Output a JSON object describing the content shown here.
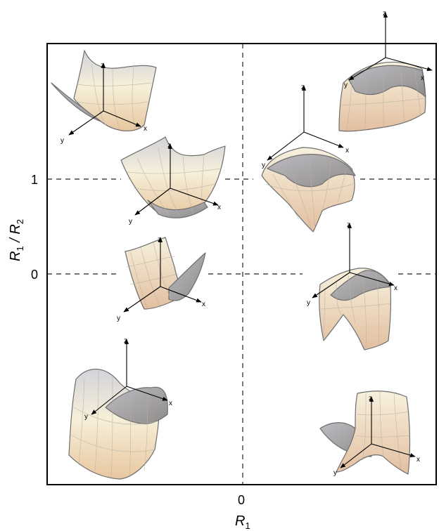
{
  "axes": {
    "x_title_base": "R",
    "x_title_sub": "1",
    "y_title_num_base": "R",
    "y_title_num_sub": "1",
    "y_title_sep": " / ",
    "y_title_den_base": "R",
    "y_title_den_sub": "2",
    "x_ticks": [
      "0"
    ],
    "y_ticks": [
      "1",
      "0"
    ]
  },
  "axis3d_labels": {
    "x": "x",
    "y": "y",
    "z": "z"
  },
  "surfaces": [
    {
      "id": "bowl-top-left",
      "shape": "trough"
    },
    {
      "id": "bowl-upper-left",
      "shape": "bowl"
    },
    {
      "id": "ridge-left-middle",
      "shape": "flat-trough"
    },
    {
      "id": "saddle-bottom-left",
      "shape": "saddle"
    },
    {
      "id": "cap-top-right",
      "shape": "dome-open"
    },
    {
      "id": "dome-upper-right",
      "shape": "dome"
    },
    {
      "id": "ridge-right-middle",
      "shape": "ridge"
    },
    {
      "id": "saddle-bottom-right",
      "shape": "saddle"
    }
  ],
  "colors": {
    "surface_light": "#f6efd9",
    "surface_shade": "#c8c3bf",
    "surface_warm": "#e7c9a3"
  }
}
